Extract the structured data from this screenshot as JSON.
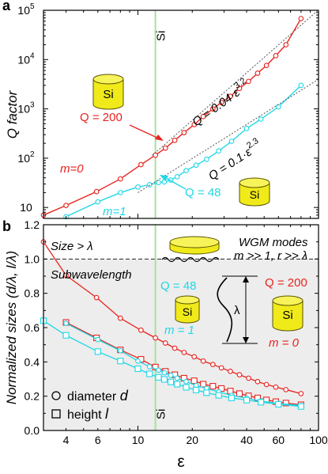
{
  "chart_data": [
    {
      "panel": "a",
      "type": "line",
      "xscale": "log",
      "yscale": "log",
      "xlim": [
        3,
        100
      ],
      "ylim": [
        6,
        100000
      ],
      "ylabel": "Q factor",
      "yticks": [
        "10",
        "10^2",
        "10^3",
        "10^4",
        "10^5"
      ],
      "marker": "circle",
      "series": [
        {
          "name": "m=0",
          "color": "#e8231f",
          "x": [
            3.0,
            4.0,
            5.9,
            8.0,
            10.4,
            12.5,
            14.2,
            16.0,
            18.0,
            20.5,
            23.0,
            26.0,
            29.0,
            32.5,
            36.5,
            41.0,
            46.0,
            51.5,
            58.0,
            66.0,
            80.0
          ],
          "y": [
            7,
            11,
            21,
            38,
            74,
            115,
            160,
            230,
            330,
            480,
            700,
            1000,
            1350,
            1800,
            2600,
            3600,
            5300,
            7600,
            12000,
            20000,
            68000
          ]
        },
        {
          "name": "m=1",
          "color": "#20d7e6",
          "x": [
            4.0,
            6.0,
            8.0,
            10.0,
            11.6,
            13.0,
            14.0,
            15.2,
            16.5,
            18.5,
            21.0,
            24.0,
            28.0,
            33.0,
            40.0,
            48.0,
            60.0,
            80.0
          ],
          "y": [
            6.5,
            13,
            20,
            26,
            29,
            32,
            33,
            36,
            42,
            56,
            72,
            95,
            140,
            220,
            400,
            620,
            1100,
            3000
          ]
        },
        {
          "name": "Q = 0.04·ε^3.2",
          "color": "#555555",
          "dashed": true,
          "x": [
            12.0,
            100.0
          ],
          "y": [
            113.6,
            102000
          ]
        },
        {
          "name": "Q = 0.1·ε^2.3",
          "color": "#555555",
          "dashed": true,
          "x": [
            10.0,
            100.0
          ],
          "y": [
            20.0,
            3980
          ]
        }
      ],
      "annotations": {
        "m0": "m=0",
        "m1": "m=1",
        "q200": "Q = 200",
        "q48": "Q = 48",
        "fit1_pre": "Q = 0.04·ε",
        "fit1_exp": "3.2",
        "fit2_pre": "Q = 0.1·ε",
        "fit2_exp": "2.3",
        "si_line": "Si",
        "si_disk": "Si"
      }
    },
    {
      "panel": "b",
      "type": "line",
      "xscale": "log",
      "xlim": [
        3,
        100
      ],
      "ylim": [
        0,
        1.2
      ],
      "xlabel": "ε",
      "ylabel": "Normalized sizes (d/λ, l/λ)",
      "xticks": [
        4,
        6,
        10,
        20,
        40,
        60,
        100
      ],
      "yticks": [
        0.0,
        0.2,
        0.4,
        0.6,
        0.8,
        1.0,
        1.2
      ],
      "threshold": 1.0,
      "series": [
        {
          "name": "diameter d, m = 0",
          "color": "#e8231f",
          "marker": "circle",
          "x": [
            3.0,
            4.0,
            5.9,
            8.0,
            10.4,
            12.5,
            14.2,
            16.0,
            18.0,
            20.5,
            23.0,
            26.0,
            29.0,
            32.5,
            36.5,
            41.0,
            46.0,
            51.5,
            58.0,
            66.0,
            80.0
          ],
          "y": [
            1.1,
            0.905,
            0.775,
            0.655,
            0.585,
            0.54,
            0.51,
            0.48,
            0.455,
            0.43,
            0.405,
            0.385,
            0.365,
            0.345,
            0.325,
            0.305,
            0.285,
            0.268,
            0.253,
            0.238,
            0.215
          ]
        },
        {
          "name": "height l, m = 0",
          "color": "#e8231f",
          "marker": "square",
          "x": [
            4.0,
            5.9,
            8.0,
            10.4,
            12.5,
            14.2,
            16.0,
            18.0,
            20.5,
            23.0,
            26.0,
            29.0,
            32.5,
            36.5,
            41.0,
            46.0,
            51.5,
            58.0,
            66.0,
            80.0
          ],
          "y": [
            0.63,
            0.54,
            0.47,
            0.415,
            0.37,
            0.345,
            0.325,
            0.305,
            0.29,
            0.27,
            0.258,
            0.245,
            0.23,
            0.215,
            0.202,
            0.19,
            0.178,
            0.168,
            0.16,
            0.15
          ]
        },
        {
          "name": "diameter d, m = 1",
          "color": "#20d7e6",
          "marker": "circle",
          "x": [
            4.0,
            6.0,
            8.0,
            10.0,
            11.6,
            13.0,
            14.0,
            15.2,
            16.5,
            18.5,
            21.0,
            24.0,
            28.0,
            33.0,
            40.0,
            48.0,
            60.0,
            80.0
          ],
          "y": [
            0.625,
            0.53,
            0.465,
            0.405,
            0.372,
            0.352,
            0.337,
            0.322,
            0.305,
            0.285,
            0.262,
            0.245,
            0.225,
            0.205,
            0.188,
            0.172,
            0.158,
            0.145
          ]
        },
        {
          "name": "height l, m = 1",
          "color": "#20d7e6",
          "marker": "square",
          "x": [
            3.0,
            4.0,
            6.0,
            8.0,
            10.0,
            11.6,
            13.0,
            14.0,
            15.2,
            16.5,
            18.5,
            21.0,
            24.0,
            28.0,
            33.0,
            40.0,
            48.0,
            60.0,
            80.0
          ],
          "y": [
            0.64,
            0.555,
            0.46,
            0.405,
            0.36,
            0.33,
            0.31,
            0.298,
            0.283,
            0.27,
            0.252,
            0.236,
            0.22,
            0.205,
            0.19,
            0.177,
            0.165,
            0.153,
            0.14
          ]
        }
      ],
      "annotations": {
        "size_gt": "Size > λ",
        "subwl": "Subwavelength",
        "wgm": "WGM modes",
        "wgm_cond": "m >> 1, r >> λ",
        "q48": "Q = 48",
        "m1": "m = 1",
        "q200": "Q = 200",
        "m0": "m = 0",
        "lambda": "λ",
        "si_line": "Si",
        "si_disk1": "Si",
        "si_disk2": "Si",
        "legend_d_pre": "diameter",
        "legend_d_var": "d",
        "legend_l_pre": "height",
        "legend_l_var": "l"
      }
    }
  ],
  "panel_labels": [
    "a",
    "b"
  ],
  "si_epsilon": 12.5,
  "colors": {
    "red": "#e8231f",
    "cyan": "#20d7e6",
    "si_line": "#a6e29a",
    "shade": "#ededed",
    "disk_body": "#f0ea1a",
    "disk_top": "#f7f35a",
    "disk_stroke": "#5a5400"
  }
}
